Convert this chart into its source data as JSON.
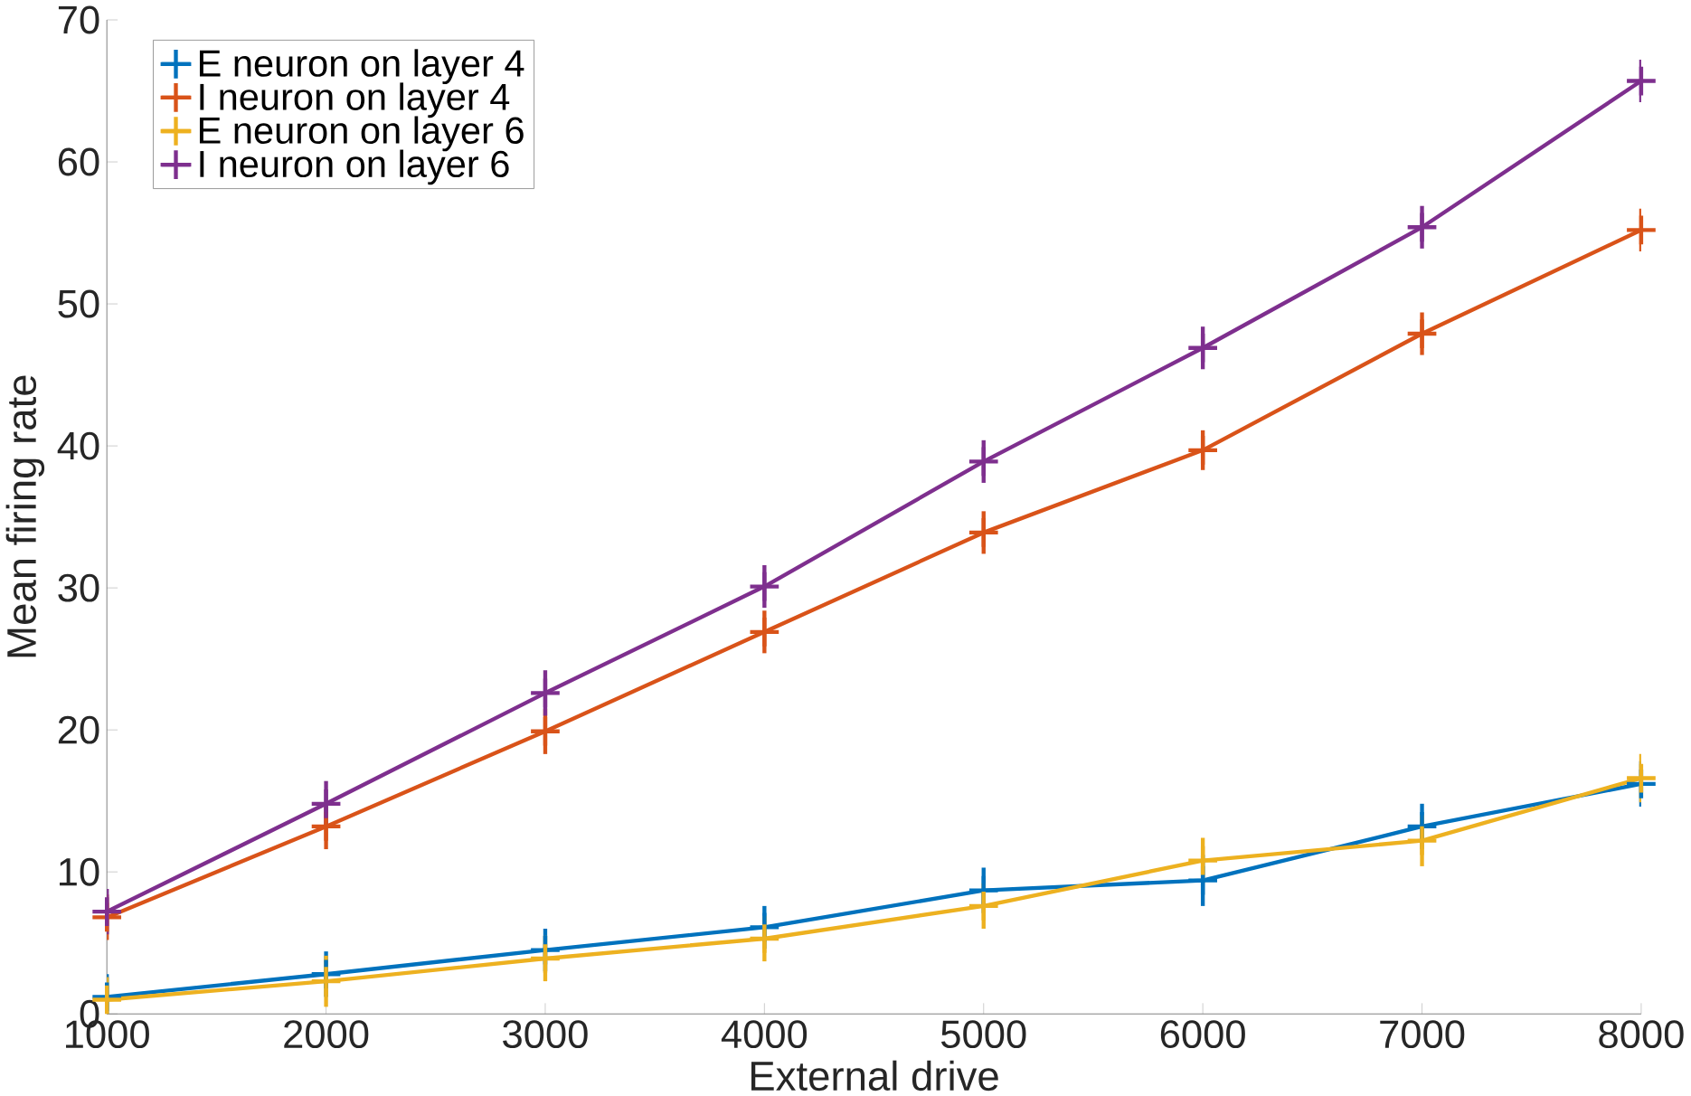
{
  "chart_data": {
    "type": "line",
    "xlabel": "External drive",
    "ylabel": "Mean firing rate",
    "x": [
      1000,
      2000,
      3000,
      4000,
      5000,
      6000,
      7000,
      8000
    ],
    "xlim": [
      1000,
      8000
    ],
    "xticks": [
      1000,
      2000,
      3000,
      4000,
      5000,
      6000,
      7000,
      8000
    ],
    "ylim": [
      0,
      70
    ],
    "yticks": [
      0,
      10,
      20,
      30,
      40,
      50,
      60,
      70
    ],
    "marker": "cross",
    "legend": "top left",
    "grid": false,
    "series": [
      {
        "name": "E neuron on layer 4",
        "color": "#0072bd",
        "values": [
          1.2,
          2.8,
          4.5,
          6.1,
          8.7,
          9.4,
          13.2,
          16.2
        ],
        "errors": [
          [
            0,
            2.8
          ],
          1.6,
          1.5,
          1.5,
          1.6,
          1.8,
          1.6,
          1.6
        ]
      },
      {
        "name": "I neuron on layer 4",
        "color": "#d95319",
        "values": [
          6.8,
          13.2,
          19.9,
          26.9,
          33.9,
          39.7,
          47.9,
          55.2
        ],
        "errors": [
          1.6,
          1.6,
          1.6,
          1.5,
          1.5,
          1.4,
          1.5,
          1.5
        ]
      },
      {
        "name": "E neuron on layer 6",
        "color": "#edb120",
        "values": [
          1.0,
          2.3,
          3.9,
          5.3,
          7.6,
          10.8,
          12.2,
          16.6
        ],
        "errors": [
          [
            0,
            2.6
          ],
          1.8,
          1.6,
          1.6,
          1.6,
          1.6,
          1.8,
          1.7
        ]
      },
      {
        "name": "I neuron on layer 6",
        "color": "#7e2f8e",
        "values": [
          7.2,
          14.8,
          22.6,
          30.1,
          38.9,
          46.9,
          55.4,
          65.7
        ],
        "errors": [
          1.6,
          1.6,
          1.6,
          1.5,
          1.5,
          1.5,
          1.5,
          1.5
        ]
      }
    ]
  }
}
